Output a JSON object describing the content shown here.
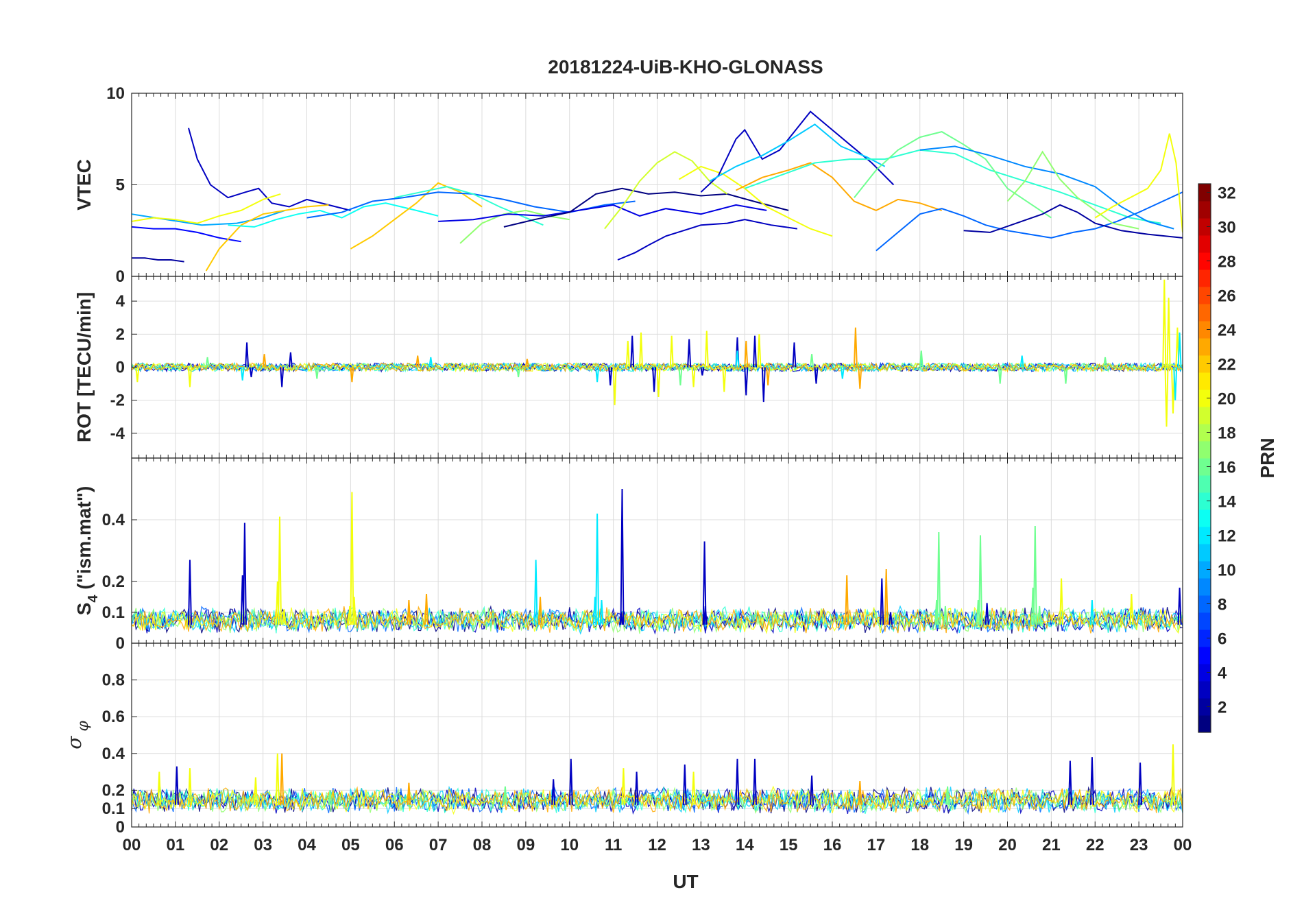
{
  "figure": {
    "title": "20181224-UiB-KHO-GLONASS",
    "xlabel": "UT"
  },
  "chart_data": [
    {
      "type": "line",
      "panel": "vtec",
      "ylabel": "VTEC",
      "ylim": [
        0,
        10
      ],
      "yticks": [
        0,
        5,
        10
      ],
      "xlim": [
        0,
        24
      ],
      "grid": true,
      "series": [
        {
          "prn": 3,
          "x": [
            1.3,
            1.5,
            1.8,
            2.2,
            2.6,
            2.9,
            3.2,
            3.6,
            4.0,
            4.5,
            5.0
          ],
          "y": [
            8.1,
            6.4,
            5.0,
            4.3,
            4.6,
            4.8,
            4.0,
            3.8,
            4.2,
            3.9,
            3.6
          ]
        },
        {
          "prn": 2,
          "x": [
            0.0,
            0.3,
            0.6,
            0.9,
            1.2
          ],
          "y": [
            1.0,
            1.0,
            0.9,
            0.9,
            0.8
          ]
        },
        {
          "prn": 5,
          "x": [
            0.0,
            0.5,
            1.0,
            1.5,
            2.0,
            2.5
          ],
          "y": [
            2.7,
            2.6,
            2.6,
            2.4,
            2.1,
            1.9
          ]
        },
        {
          "prn": 10,
          "x": [
            0.0,
            0.8,
            1.6,
            2.4,
            3.0,
            3.5
          ],
          "y": [
            3.4,
            3.1,
            2.8,
            2.9,
            3.2,
            3.6
          ]
        },
        {
          "prn": 20,
          "x": [
            0.0,
            0.5,
            1.0,
            1.5,
            2.0,
            2.5,
            3.0,
            3.4
          ],
          "y": [
            3.0,
            3.2,
            3.1,
            2.9,
            3.3,
            3.6,
            4.2,
            4.5
          ]
        },
        {
          "prn": 22,
          "x": [
            1.7,
            2.0,
            2.5,
            3.0,
            3.5,
            4.0,
            4.5
          ],
          "y": [
            0.3,
            1.5,
            2.8,
            3.4,
            3.6,
            3.8,
            3.9
          ]
        },
        {
          "prn": 13,
          "x": [
            2.2,
            2.8,
            3.3,
            3.8,
            4.3,
            4.8,
            5.3,
            5.8,
            6.5,
            7.0
          ],
          "y": [
            2.8,
            2.7,
            3.1,
            3.4,
            3.6,
            3.2,
            3.8,
            4.0,
            3.6,
            3.3
          ]
        },
        {
          "prn": 22,
          "x": [
            5.0,
            5.5,
            6.0,
            6.5,
            7.0,
            7.5,
            8.0
          ],
          "y": [
            1.5,
            2.2,
            3.1,
            4.0,
            5.1,
            4.6,
            3.8
          ]
        },
        {
          "prn": 8,
          "x": [
            4.0,
            4.8,
            5.5,
            6.2,
            7.0,
            7.8,
            8.5,
            9.2,
            10.0,
            10.8,
            11.5
          ],
          "y": [
            3.2,
            3.5,
            4.1,
            4.3,
            4.6,
            4.5,
            4.2,
            3.8,
            3.5,
            3.9,
            4.1
          ]
        },
        {
          "prn": 14,
          "x": [
            6.0,
            6.6,
            7.2,
            7.8,
            8.4,
            9.0,
            9.4
          ],
          "y": [
            4.3,
            4.6,
            4.9,
            4.5,
            3.8,
            3.2,
            2.8
          ]
        },
        {
          "prn": 17,
          "x": [
            7.5,
            8.0,
            8.5,
            9.0,
            9.5,
            10.0
          ],
          "y": [
            1.8,
            2.9,
            3.4,
            3.6,
            3.3,
            3.1
          ]
        },
        {
          "prn": 4,
          "x": [
            7.0,
            7.8,
            8.6,
            9.4,
            10.2,
            11.0,
            11.6,
            12.2,
            13.0,
            13.8,
            14.5
          ],
          "y": [
            3.0,
            3.1,
            3.4,
            3.3,
            3.6,
            3.9,
            3.3,
            3.7,
            3.4,
            3.9,
            3.6
          ]
        },
        {
          "prn": 1,
          "x": [
            8.5,
            9.2,
            10.0,
            10.6,
            11.2,
            11.8,
            12.4,
            13.0,
            13.6,
            14.2,
            15.0
          ],
          "y": [
            2.7,
            3.1,
            3.5,
            4.5,
            4.8,
            4.5,
            4.6,
            4.4,
            4.5,
            4.1,
            3.6
          ]
        },
        {
          "prn": 3,
          "x": [
            11.1,
            11.5,
            11.8,
            12.2,
            12.6,
            13.0,
            13.6,
            14.0,
            14.6,
            15.2
          ],
          "y": [
            0.9,
            1.3,
            1.7,
            2.2,
            2.5,
            2.8,
            2.9,
            3.1,
            2.8,
            2.6
          ]
        },
        {
          "prn": 19,
          "x": [
            10.8,
            11.2,
            11.6,
            12.0,
            12.4,
            12.8,
            13.2,
            13.6
          ],
          "y": [
            2.6,
            3.8,
            5.2,
            6.2,
            6.8,
            6.3,
            5.2,
            4.5
          ]
        },
        {
          "prn": 20,
          "x": [
            12.5,
            13.0,
            13.5,
            14.0,
            14.5,
            15.0,
            15.5,
            16.0
          ],
          "y": [
            5.3,
            6.0,
            5.6,
            4.8,
            3.8,
            3.2,
            2.6,
            2.2
          ]
        },
        {
          "prn": 3,
          "x": [
            13.0,
            13.4,
            13.8,
            14.0,
            14.4,
            14.8,
            15.2,
            15.5,
            15.9,
            16.4,
            16.9,
            17.4
          ],
          "y": [
            4.6,
            5.5,
            7.5,
            8.0,
            6.4,
            6.9,
            8.1,
            9.0,
            8.2,
            7.2,
            6.2,
            5.0
          ]
        },
        {
          "prn": 11,
          "x": [
            13.2,
            13.8,
            14.4,
            15.0,
            15.6,
            16.2,
            16.8,
            17.2
          ],
          "y": [
            5.2,
            6.0,
            6.6,
            7.4,
            8.3,
            7.1,
            6.5,
            6.0
          ]
        },
        {
          "prn": 23,
          "x": [
            13.8,
            14.4,
            15.0,
            15.5,
            16.0,
            16.5,
            17.0,
            17.5,
            18.0,
            18.5
          ],
          "y": [
            4.7,
            5.4,
            5.8,
            6.2,
            5.4,
            4.1,
            3.6,
            4.2,
            4.0,
            3.6
          ]
        },
        {
          "prn": 14,
          "x": [
            14.0,
            14.8,
            15.6,
            16.4,
            17.2,
            18.0,
            18.8,
            19.6,
            20.4,
            21.2,
            22.0,
            22.8,
            23.5
          ],
          "y": [
            4.8,
            5.5,
            6.2,
            6.4,
            6.4,
            6.9,
            6.7,
            5.8,
            5.2,
            4.6,
            3.9,
            3.2,
            2.9
          ]
        },
        {
          "prn": 16,
          "x": [
            16.5,
            17.0,
            17.5,
            18.0,
            18.5,
            19.0,
            19.5,
            20.0,
            20.5,
            21.0
          ],
          "y": [
            4.3,
            5.8,
            6.9,
            7.6,
            7.9,
            7.2,
            6.4,
            4.8,
            4.0,
            3.2
          ]
        },
        {
          "prn": 8,
          "x": [
            17.0,
            17.5,
            18.0,
            18.5,
            19.0,
            19.5,
            20.0,
            20.5,
            21.0,
            21.5,
            22.0,
            22.5,
            23.0,
            24.0
          ],
          "y": [
            1.4,
            2.4,
            3.4,
            3.7,
            3.3,
            2.8,
            2.5,
            2.3,
            2.1,
            2.4,
            2.6,
            3.0,
            3.5,
            4.6
          ]
        },
        {
          "prn": 9,
          "x": [
            18.0,
            18.8,
            19.6,
            20.4,
            21.2,
            22.0,
            22.6,
            23.2,
            23.8
          ],
          "y": [
            6.9,
            7.1,
            6.6,
            6.0,
            5.6,
            4.9,
            3.8,
            3.0,
            2.6
          ]
        },
        {
          "prn": 17,
          "x": [
            20.0,
            20.4,
            20.8,
            21.2,
            21.6,
            22.0,
            22.4,
            23.0
          ],
          "y": [
            4.1,
            5.2,
            6.8,
            5.3,
            4.3,
            3.6,
            2.9,
            2.6
          ]
        },
        {
          "prn": 2,
          "x": [
            19.0,
            19.6,
            20.2,
            20.8,
            21.2,
            21.6,
            22.0,
            22.6,
            23.2,
            24.0
          ],
          "y": [
            2.5,
            2.4,
            2.9,
            3.4,
            3.9,
            3.5,
            2.9,
            2.5,
            2.3,
            2.1
          ]
        },
        {
          "prn": 20,
          "x": [
            22.0,
            22.4,
            22.8,
            23.2,
            23.5,
            23.7,
            23.85,
            24.0
          ],
          "y": [
            3.2,
            3.8,
            4.3,
            4.8,
            5.8,
            7.8,
            6.2,
            2.4
          ]
        }
      ]
    },
    {
      "type": "line",
      "panel": "rot",
      "ylabel": "ROT [TECU/min]",
      "ylim": [
        -5.5,
        5.5
      ],
      "yticks": [
        -4,
        -2,
        0,
        2,
        4
      ],
      "xlim": [
        0,
        24
      ],
      "grid": true,
      "series": [
        {
          "prn": 3,
          "x": [
            2.6,
            2.7,
            3.4,
            3.6,
            10.9,
            11.4,
            11.9,
            12.7,
            13.0,
            13.8,
            14.0,
            14.2,
            14.4,
            15.1,
            15.6
          ],
          "y": [
            1.5,
            -0.6,
            -1.2,
            0.9,
            -1.1,
            1.9,
            -1.5,
            1.7,
            -0.5,
            1.8,
            -1.7,
            1.9,
            -2.1,
            1.5,
            -1.0
          ]
        },
        {
          "prn": 20,
          "x": [
            0.1,
            1.3,
            11.0,
            11.3,
            11.6,
            12.0,
            12.3,
            12.8,
            13.1,
            13.5,
            14.3,
            23.55,
            23.6,
            23.65,
            23.75,
            23.85
          ],
          "y": [
            -0.9,
            -1.2,
            -2.3,
            1.6,
            2.1,
            -1.8,
            1.9,
            -1.2,
            2.2,
            -1.5,
            2.0,
            5.3,
            -3.6,
            4.2,
            -2.8,
            2.4
          ]
        },
        {
          "prn": 23,
          "x": [
            3.0,
            5.0,
            6.5,
            9.0,
            14.0,
            14.5,
            16.5,
            16.6
          ],
          "y": [
            0.8,
            -0.9,
            0.7,
            0.5,
            1.6,
            -1.1,
            2.4,
            -1.3
          ]
        },
        {
          "prn": 12,
          "x": [
            2.5,
            6.8,
            10.6,
            13.8,
            16.2,
            18.0,
            20.3,
            23.8,
            23.9,
            24.0
          ],
          "y": [
            -0.8,
            0.6,
            -0.9,
            1.0,
            -0.7,
            0.6,
            0.7,
            -2.0,
            2.1,
            -1.5
          ]
        },
        {
          "prn": 16,
          "x": [
            1.7,
            4.2,
            8.8,
            12.5,
            15.5,
            18.0,
            19.8,
            21.3,
            22.2
          ],
          "y": [
            0.6,
            -0.7,
            -0.6,
            -1.1,
            0.8,
            1.0,
            -1.0,
            -1.0,
            0.6
          ]
        }
      ]
    },
    {
      "type": "line",
      "panel": "s4",
      "ylabel": "S4 (\"ism.mat\")",
      "ylim": [
        0,
        0.6
      ],
      "yticks": [
        0,
        0.1,
        0.2,
        0.4
      ],
      "xlim": [
        0,
        24
      ],
      "grid": true,
      "series": [
        {
          "prn": 3,
          "x": [
            1.3,
            2.5,
            2.55,
            11.15,
            11.17,
            13.05,
            13.07,
            17.1,
            17.3,
            19.5,
            23.9
          ],
          "y": [
            0.27,
            0.22,
            0.39,
            0.1,
            0.5,
            0.33,
            0.12,
            0.21,
            0.1,
            0.13,
            0.18
          ]
        },
        {
          "prn": 20,
          "x": [
            3.3,
            3.35,
            3.45,
            4.95,
            5.0,
            5.05,
            21.2,
            22.8
          ],
          "y": [
            0.2,
            0.41,
            0.11,
            0.12,
            0.49,
            0.15,
            0.21,
            0.16
          ]
        },
        {
          "prn": 12,
          "x": [
            9.2,
            9.3,
            10.55,
            10.6,
            10.7,
            21.9
          ],
          "y": [
            0.27,
            0.13,
            0.15,
            0.42,
            0.14,
            0.14
          ]
        },
        {
          "prn": 16,
          "x": [
            18.35,
            18.4,
            18.55,
            19.3,
            19.35,
            20.55,
            20.6,
            20.7
          ],
          "y": [
            0.14,
            0.36,
            0.12,
            0.14,
            0.35,
            0.18,
            0.38,
            0.12
          ]
        },
        {
          "prn": 23,
          "x": [
            6.3,
            6.7,
            9.3,
            16.3,
            17.2
          ],
          "y": [
            0.14,
            0.16,
            0.15,
            0.22,
            0.24
          ]
        }
      ]
    },
    {
      "type": "line",
      "panel": "sigma_phi",
      "ylabel": "σφ",
      "ylim": [
        0,
        1
      ],
      "yticks": [
        0,
        0.1,
        0.2,
        0.4,
        0.6,
        0.8
      ],
      "xlim": [
        0,
        24
      ],
      "grid": true,
      "series": [
        {
          "prn": 3,
          "x": [
            1.0,
            9.6,
            10.0,
            11.5,
            12.6,
            13.8,
            14.2,
            15.5,
            21.4,
            21.9,
            23.0
          ],
          "y": [
            0.33,
            0.26,
            0.37,
            0.3,
            0.34,
            0.37,
            0.37,
            0.28,
            0.36,
            0.38,
            0.35
          ]
        },
        {
          "prn": 20,
          "x": [
            0.6,
            1.3,
            2.8,
            3.3,
            11.2,
            12.8,
            23.75
          ],
          "y": [
            0.3,
            0.32,
            0.27,
            0.4,
            0.32,
            0.3,
            0.45
          ]
        },
        {
          "prn": 23,
          "x": [
            3.4,
            6.3,
            16.6
          ],
          "y": [
            0.4,
            0.24,
            0.25
          ]
        },
        {
          "prn": 16,
          "x": [
            4.5,
            8.5,
            18.6
          ],
          "y": [
            0.2,
            0.22,
            0.22
          ]
        }
      ]
    }
  ],
  "colorbar": {
    "label": "PRN",
    "min": 1,
    "max": 32,
    "ticks": [
      2,
      4,
      6,
      8,
      10,
      12,
      14,
      16,
      18,
      20,
      22,
      24,
      26,
      28,
      30,
      32
    ],
    "colormap": "jet"
  },
  "xaxis": {
    "ticks": [
      "00",
      "01",
      "02",
      "03",
      "04",
      "05",
      "06",
      "07",
      "08",
      "09",
      "10",
      "11",
      "12",
      "13",
      "14",
      "15",
      "16",
      "17",
      "18",
      "19",
      "20",
      "21",
      "22",
      "23",
      "00"
    ]
  }
}
